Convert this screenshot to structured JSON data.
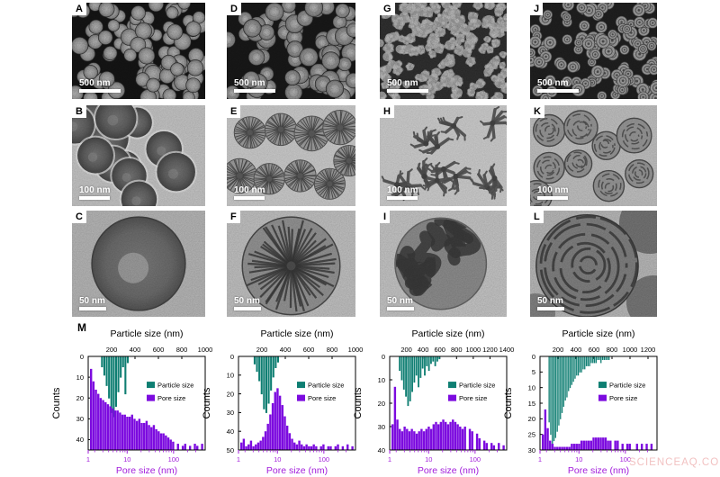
{
  "figure": {
    "m_label": "M",
    "watermark": "SCIENCEAQ.COM",
    "panels": [
      {
        "label": "A",
        "scale_bar": "500 nm"
      },
      {
        "label": "D",
        "scale_bar": "500 nm"
      },
      {
        "label": "G",
        "scale_bar": "500 nm"
      },
      {
        "label": "J",
        "scale_bar": "500 nm"
      },
      {
        "label": "B",
        "scale_bar": "100 nm"
      },
      {
        "label": "E",
        "scale_bar": "100 nm"
      },
      {
        "label": "H",
        "scale_bar": "100 nm"
      },
      {
        "label": "K",
        "scale_bar": "100 nm"
      },
      {
        "label": "C",
        "scale_bar": "50 nm"
      },
      {
        "label": "F",
        "scale_bar": "50 nm"
      },
      {
        "label": "I",
        "scale_bar": "50 nm"
      },
      {
        "label": "L",
        "scale_bar": "50 nm"
      }
    ],
    "colors": {
      "particle": "#0e7e72",
      "pore": "#7c0bdf",
      "pore_axis_text": "#a21ddb",
      "watermark": "#f2c2c2"
    }
  },
  "chart_data": [
    {
      "type": "dual-histogram",
      "top_axis": {
        "title": "Particle size (nm)",
        "ticks": [
          200,
          400,
          600,
          800,
          1000
        ],
        "min": 0,
        "max": 1000
      },
      "left_axis": {
        "title": "Counts",
        "ticks": [
          0,
          10,
          20,
          30,
          40
        ],
        "min": 0,
        "max": 45
      },
      "bottom_axis": {
        "title": "Pore size (nm)",
        "scale": "log",
        "ticks": [
          1,
          10,
          100
        ],
        "min": 1.45,
        "max": 480
      },
      "legend": [
        "Particle size",
        "Pore size"
      ],
      "particle_series": {
        "name": "Particle size",
        "bin_start_nm": 110,
        "bin_width_nm": 20,
        "counts": [
          5,
          9,
          14,
          20,
          27,
          29,
          24,
          17,
          10,
          5,
          18,
          3
        ]
      },
      "pore_series": {
        "name": "Pore size",
        "x_log10_start": 0.2,
        "x_log10_step": 0.052,
        "counts": [
          39,
          33,
          29,
          27,
          25,
          24,
          23,
          22,
          21,
          20,
          19,
          19,
          18,
          17,
          17,
          16,
          16,
          17,
          15,
          14,
          15,
          13,
          13,
          14,
          12,
          11,
          12,
          10,
          9,
          8,
          8,
          7,
          6,
          5,
          4,
          0,
          3,
          0,
          2,
          3,
          0,
          2,
          0,
          3,
          2,
          0,
          3
        ]
      }
    },
    {
      "type": "dual-histogram",
      "top_axis": {
        "title": "Particle size (nm)",
        "ticks": [
          200,
          400,
          600,
          800,
          1000
        ],
        "min": 0,
        "max": 1000
      },
      "left_axis": {
        "title": "Counts",
        "ticks": [
          0,
          10,
          20,
          30,
          40,
          50
        ],
        "min": 0,
        "max": 50
      },
      "bottom_axis": {
        "title": "Pore size (nm)",
        "scale": "log",
        "ticks": [
          1,
          10,
          100
        ],
        "min": 1.45,
        "max": 480
      },
      "legend": [
        "Particle size",
        "Pore size"
      ],
      "particle_series": {
        "name": "Particle size",
        "bin_start_nm": 130,
        "bin_width_nm": 20,
        "counts": [
          4,
          8,
          13,
          20,
          28,
          30,
          25,
          18,
          11,
          6,
          3
        ]
      },
      "pore_series": {
        "name": "Pore size",
        "x_log10_start": 0.2,
        "x_log10_step": 0.052,
        "counts": [
          4,
          6,
          2,
          3,
          5,
          2,
          3,
          4,
          5,
          7,
          10,
          14,
          19,
          25,
          31,
          33,
          29,
          24,
          18,
          13,
          9,
          6,
          4,
          3,
          5,
          3,
          2,
          3,
          2,
          2,
          3,
          2,
          0,
          2,
          3,
          0,
          2,
          2,
          0,
          2,
          3,
          0,
          2,
          0,
          3,
          0,
          2
        ]
      }
    },
    {
      "type": "dual-histogram",
      "top_axis": {
        "title": "Particle size (nm)",
        "ticks": [
          200,
          400,
          600,
          800,
          1000,
          1200,
          1400
        ],
        "min": 0,
        "max": 1400
      },
      "left_axis": {
        "title": "Counts",
        "ticks": [
          0,
          10,
          20,
          30,
          40
        ],
        "min": 0,
        "max": 40
      },
      "bottom_axis": {
        "title": "Pore size (nm)",
        "scale": "log",
        "ticks": [
          1,
          10,
          100
        ],
        "min": 1.45,
        "max": 480
      },
      "legend": [
        "Particle size",
        "Pore size"
      ],
      "particle_series": {
        "name": "Particle size",
        "bin_start_nm": 110,
        "bin_width_nm": 25,
        "counts": [
          6,
          10,
          14,
          17,
          21,
          19,
          15,
          11,
          8,
          13,
          9,
          5,
          8,
          4,
          6,
          3,
          2,
          4,
          2,
          1
        ]
      },
      "pore_series": {
        "name": "Pore size",
        "x_log10_start": 0.2,
        "x_log10_step": 0.052,
        "counts": [
          11,
          27,
          13,
          9,
          8,
          10,
          9,
          8,
          9,
          8,
          7,
          8,
          9,
          8,
          9,
          10,
          9,
          11,
          12,
          11,
          12,
          13,
          12,
          11,
          12,
          13,
          12,
          11,
          10,
          9,
          10,
          0,
          9,
          8,
          0,
          7,
          5,
          0,
          4,
          3,
          0,
          3,
          2,
          0,
          3,
          0,
          2
        ]
      }
    },
    {
      "type": "dual-histogram",
      "top_axis": {
        "title": "Particle size (nm)",
        "ticks": [
          200,
          400,
          600,
          800,
          1000,
          1200
        ],
        "min": 0,
        "max": 1300
      },
      "left_axis": {
        "title": "Counts",
        "ticks": [
          0,
          5,
          10,
          15,
          20,
          25,
          30
        ],
        "min": 0,
        "max": 30
      },
      "bottom_axis": {
        "title": "Pore size (nm)",
        "scale": "log",
        "ticks": [
          1,
          10,
          100
        ],
        "min": 1.45,
        "max": 480
      },
      "legend": [
        "Particle size",
        "Pore size"
      ],
      "particle_series": {
        "name": "Particle size",
        "bin_start_nm": 95,
        "bin_width_nm": 18,
        "counts": [
          21,
          25,
          28,
          27,
          26,
          24,
          22,
          20,
          18,
          16,
          14,
          13,
          11,
          10,
          9,
          8,
          7,
          6,
          6,
          5,
          5,
          4,
          4,
          3,
          3,
          3,
          2,
          2,
          2,
          2,
          1,
          1,
          2,
          1,
          1,
          1,
          1,
          1
        ]
      },
      "pore_series": {
        "name": "Pore size",
        "x_log10_start": 0.2,
        "x_log10_step": 0.052,
        "counts": [
          5,
          13,
          7,
          3,
          2,
          1,
          1,
          1,
          1,
          1,
          1,
          1,
          2,
          2,
          2,
          2,
          3,
          3,
          3,
          3,
          3,
          4,
          4,
          4,
          4,
          4,
          4,
          3,
          3,
          0,
          3,
          3,
          0,
          2,
          0,
          2,
          2,
          0,
          0,
          2,
          0,
          2,
          0,
          2,
          0,
          2,
          0
        ]
      }
    }
  ]
}
